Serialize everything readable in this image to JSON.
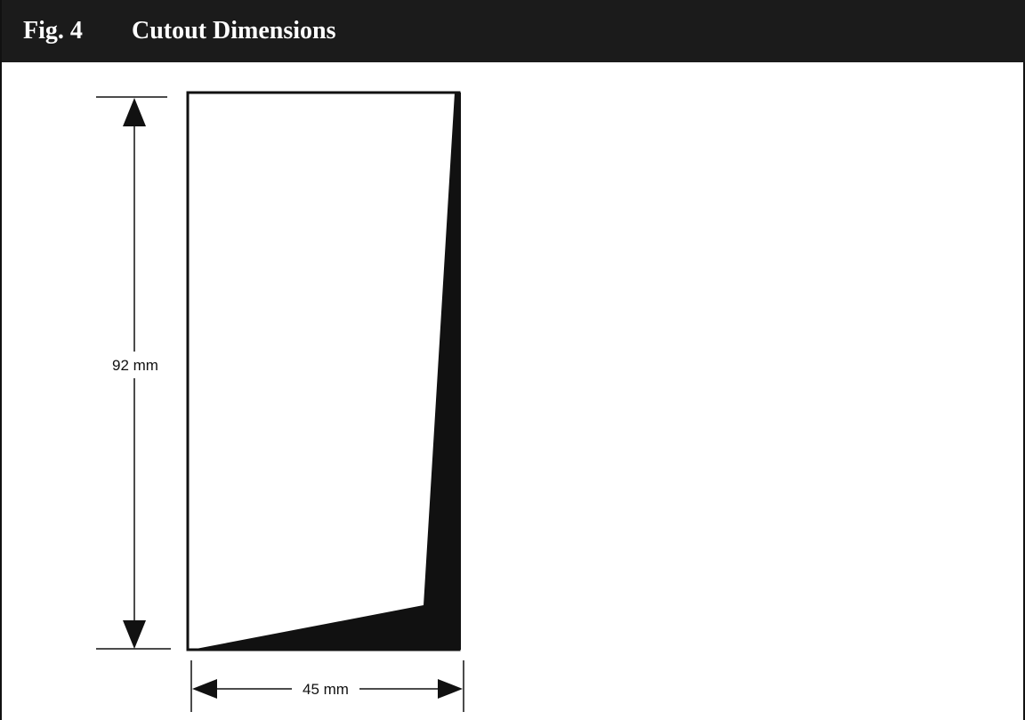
{
  "figure": {
    "number": "Fig. 4",
    "title": "Cutout Dimensions"
  },
  "dimensions": {
    "height_label": "92 mm",
    "width_label": "45 mm"
  },
  "colors": {
    "title_bar": "#1b1b1b",
    "title_text": "#ffffff",
    "line": "#111111"
  }
}
